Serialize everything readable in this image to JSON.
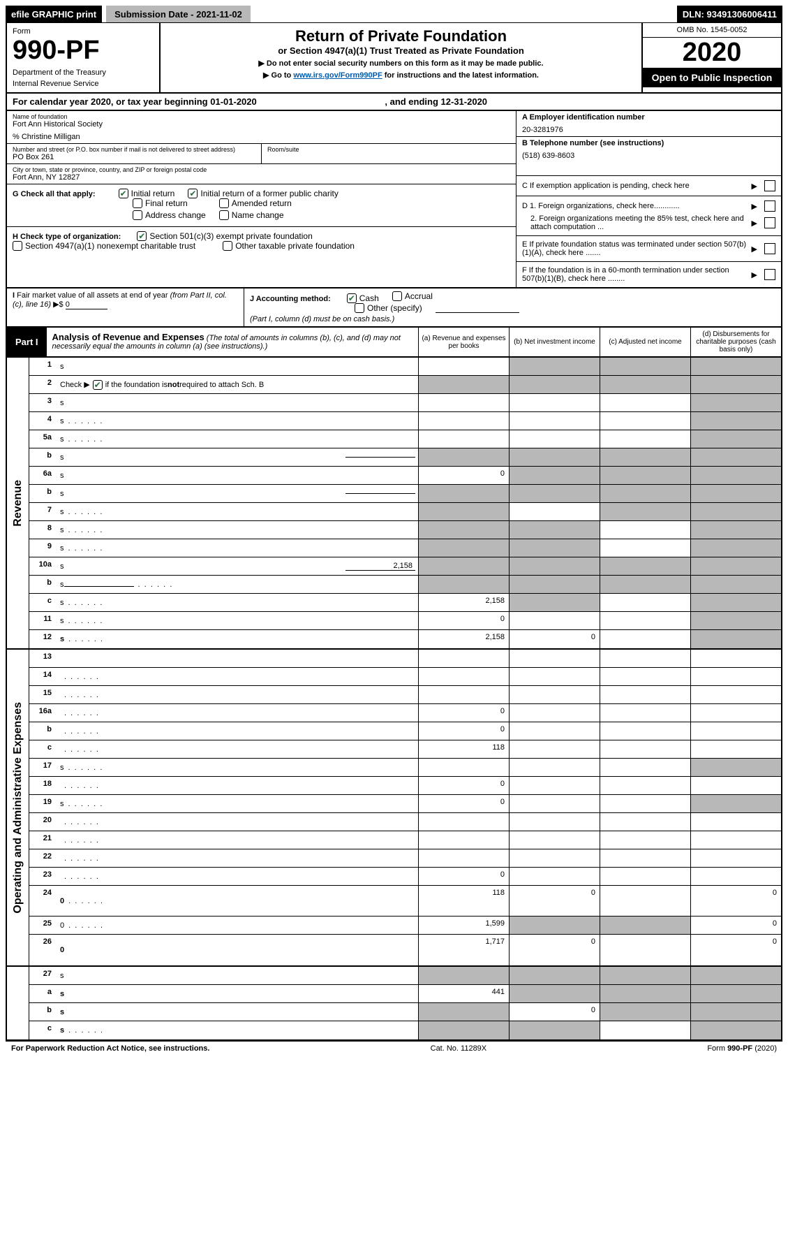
{
  "topbar": {
    "efile": "efile GRAPHIC print",
    "submission": "Submission Date - 2021-11-02",
    "dln": "DLN: 93491306006411"
  },
  "header": {
    "form_label": "Form",
    "form_number": "990-PF",
    "dept1": "Department of the Treasury",
    "dept2": "Internal Revenue Service",
    "title": "Return of Private Foundation",
    "subtitle": "or Section 4947(a)(1) Trust Treated as Private Foundation",
    "inst1": "▶ Do not enter social security numbers on this form as it may be made public.",
    "inst2_pre": "▶ Go to ",
    "inst2_link": "www.irs.gov/Form990PF",
    "inst2_post": " for instructions and the latest information.",
    "omb": "OMB No. 1545-0052",
    "year": "2020",
    "open": "Open to Public Inspection"
  },
  "yearline": {
    "pre": "For calendar year 2020, or tax year beginning ",
    "begin": "01-01-2020",
    "mid": " , and ending ",
    "end": "12-31-2020"
  },
  "info": {
    "name_label": "Name of foundation",
    "name": "Fort Ann Historical Society",
    "care_of": "% Christine Milligan",
    "addr_label": "Number and street (or P.O. box number if mail is not delivered to street address)",
    "addr": "PO Box 261",
    "room_label": "Room/suite",
    "city_label": "City or town, state or province, country, and ZIP or foreign postal code",
    "city": "Fort Ann, NY  12827",
    "a_label": "A Employer identification number",
    "a_val": "20-3281976",
    "b_label": "B Telephone number (see instructions)",
    "b_val": "(518) 639-8603",
    "c_label": "C If exemption application is pending, check here",
    "d1_label": "D 1. Foreign organizations, check here............",
    "d2_label": "2. Foreign organizations meeting the 85% test, check here and attach computation ...",
    "e_label": "E  If private foundation status was terminated under section 507(b)(1)(A), check here .......",
    "f_label": "F  If the foundation is in a 60-month termination under section 507(b)(1)(B), check here ........"
  },
  "g": {
    "label": "G Check all that apply:",
    "initial": "Initial return",
    "initial_former": "Initial return of a former public charity",
    "final": "Final return",
    "amended": "Amended return",
    "addr_change": "Address change",
    "name_change": "Name change"
  },
  "h": {
    "label": "H Check type of organization:",
    "opt1": "Section 501(c)(3) exempt private foundation",
    "opt2": "Section 4947(a)(1) nonexempt charitable trust",
    "opt3": "Other taxable private foundation"
  },
  "i": {
    "label": "I Fair market value of all assets at end of year (from Part II, col. (c), line 16) ▶$ ",
    "val": "0"
  },
  "j": {
    "label": "J Accounting method:",
    "cash": "Cash",
    "accrual": "Accrual",
    "other": "Other (specify)",
    "note": "(Part I, column (d) must be on cash basis.)"
  },
  "part1": {
    "label": "Part I",
    "title": "Analysis of Revenue and Expenses",
    "note": " (The total of amounts in columns (b), (c), and (d) may not necessarily equal the amounts in column (a) (see instructions).)",
    "col_a": "(a) Revenue and expenses per books",
    "col_b": "(b) Net investment income",
    "col_c": "(c) Adjusted net income",
    "col_d": "(d) Disbursements for charitable purposes (cash basis only)"
  },
  "sections": {
    "revenue": "Revenue",
    "opex": "Operating and Administrative Expenses"
  },
  "rows": [
    {
      "n": "1",
      "d": "s",
      "a": "",
      "b": "s",
      "c": "s"
    },
    {
      "n": "2",
      "d": "s",
      "a": "s",
      "b": "s",
      "c": "s",
      "check": true,
      "bold_not": true
    },
    {
      "n": "3",
      "d": "s",
      "a": "",
      "b": "",
      "c": ""
    },
    {
      "n": "4",
      "d": "s",
      "a": "",
      "b": "",
      "c": "",
      "dots": true
    },
    {
      "n": "5a",
      "d": "s",
      "a": "",
      "b": "",
      "c": "",
      "dots": true
    },
    {
      "n": "b",
      "d": "s",
      "a": "s",
      "b": "s",
      "c": "s",
      "inline": ""
    },
    {
      "n": "6a",
      "d": "s",
      "a": "0",
      "b": "s",
      "c": "s"
    },
    {
      "n": "b",
      "d": "s",
      "a": "s",
      "b": "s",
      "c": "s",
      "inline": ""
    },
    {
      "n": "7",
      "d": "s",
      "a": "s",
      "b": "",
      "c": "s",
      "dots": true
    },
    {
      "n": "8",
      "d": "s",
      "a": "s",
      "b": "s",
      "c": "",
      "dots": true
    },
    {
      "n": "9",
      "d": "s",
      "a": "s",
      "b": "s",
      "c": "",
      "dots": true
    },
    {
      "n": "10a",
      "d": "s",
      "a": "s",
      "b": "s",
      "c": "s",
      "inline": "2,158"
    },
    {
      "n": "b",
      "d": "s",
      "a": "s",
      "b": "s",
      "c": "s",
      "inline": "",
      "dots": true
    },
    {
      "n": "c",
      "d": "s",
      "a": "2,158",
      "b": "s",
      "c": "",
      "dots": true
    },
    {
      "n": "11",
      "d": "s",
      "a": "0",
      "b": "",
      "c": "",
      "dots": true
    },
    {
      "n": "12",
      "d": "s",
      "a": "2,158",
      "b": "0",
      "c": "",
      "bold": true,
      "dots": true
    }
  ],
  "rows2": [
    {
      "n": "13",
      "d": "",
      "a": "",
      "b": "",
      "c": ""
    },
    {
      "n": "14",
      "d": "",
      "a": "",
      "b": "",
      "c": "",
      "dots": true
    },
    {
      "n": "15",
      "d": "",
      "a": "",
      "b": "",
      "c": "",
      "dots": true
    },
    {
      "n": "16a",
      "d": "",
      "a": "0",
      "b": "",
      "c": "",
      "dots": true
    },
    {
      "n": "b",
      "d": "",
      "a": "0",
      "b": "",
      "c": "",
      "dots": true
    },
    {
      "n": "c",
      "d": "",
      "a": "118",
      "b": "",
      "c": "",
      "dots": true
    },
    {
      "n": "17",
      "d": "s",
      "a": "",
      "b": "",
      "c": "",
      "dots": true
    },
    {
      "n": "18",
      "d": "",
      "a": "0",
      "b": "",
      "c": "",
      "dots": true
    },
    {
      "n": "19",
      "d": "s",
      "a": "0",
      "b": "",
      "c": "",
      "dots": true
    },
    {
      "n": "20",
      "d": "",
      "a": "",
      "b": "",
      "c": "",
      "dots": true
    },
    {
      "n": "21",
      "d": "",
      "a": "",
      "b": "",
      "c": "",
      "dots": true
    },
    {
      "n": "22",
      "d": "",
      "a": "",
      "b": "",
      "c": "",
      "dots": true
    },
    {
      "n": "23",
      "d": "",
      "a": "0",
      "b": "",
      "c": "",
      "dots": true
    },
    {
      "n": "24",
      "d": "0",
      "a": "118",
      "b": "0",
      "c": "",
      "bold": true,
      "dots": true,
      "tall": true
    },
    {
      "n": "25",
      "d": "0",
      "a": "1,599",
      "b": "s",
      "c": "s",
      "dots": true
    },
    {
      "n": "26",
      "d": "0",
      "a": "1,717",
      "b": "0",
      "c": "",
      "bold": true,
      "tall": true
    }
  ],
  "rows3": [
    {
      "n": "27",
      "d": "s",
      "a": "s",
      "b": "s",
      "c": "s"
    },
    {
      "n": "a",
      "d": "s",
      "a": "441",
      "b": "s",
      "c": "s",
      "bold": true
    },
    {
      "n": "b",
      "d": "s",
      "a": "s",
      "b": "0",
      "c": "s",
      "bold": true
    },
    {
      "n": "c",
      "d": "s",
      "a": "s",
      "b": "s",
      "c": "",
      "bold": true,
      "dots": true
    }
  ],
  "footer": {
    "left": "For Paperwork Reduction Act Notice, see instructions.",
    "mid": "Cat. No. 11289X",
    "right": "Form 990-PF (2020)"
  }
}
